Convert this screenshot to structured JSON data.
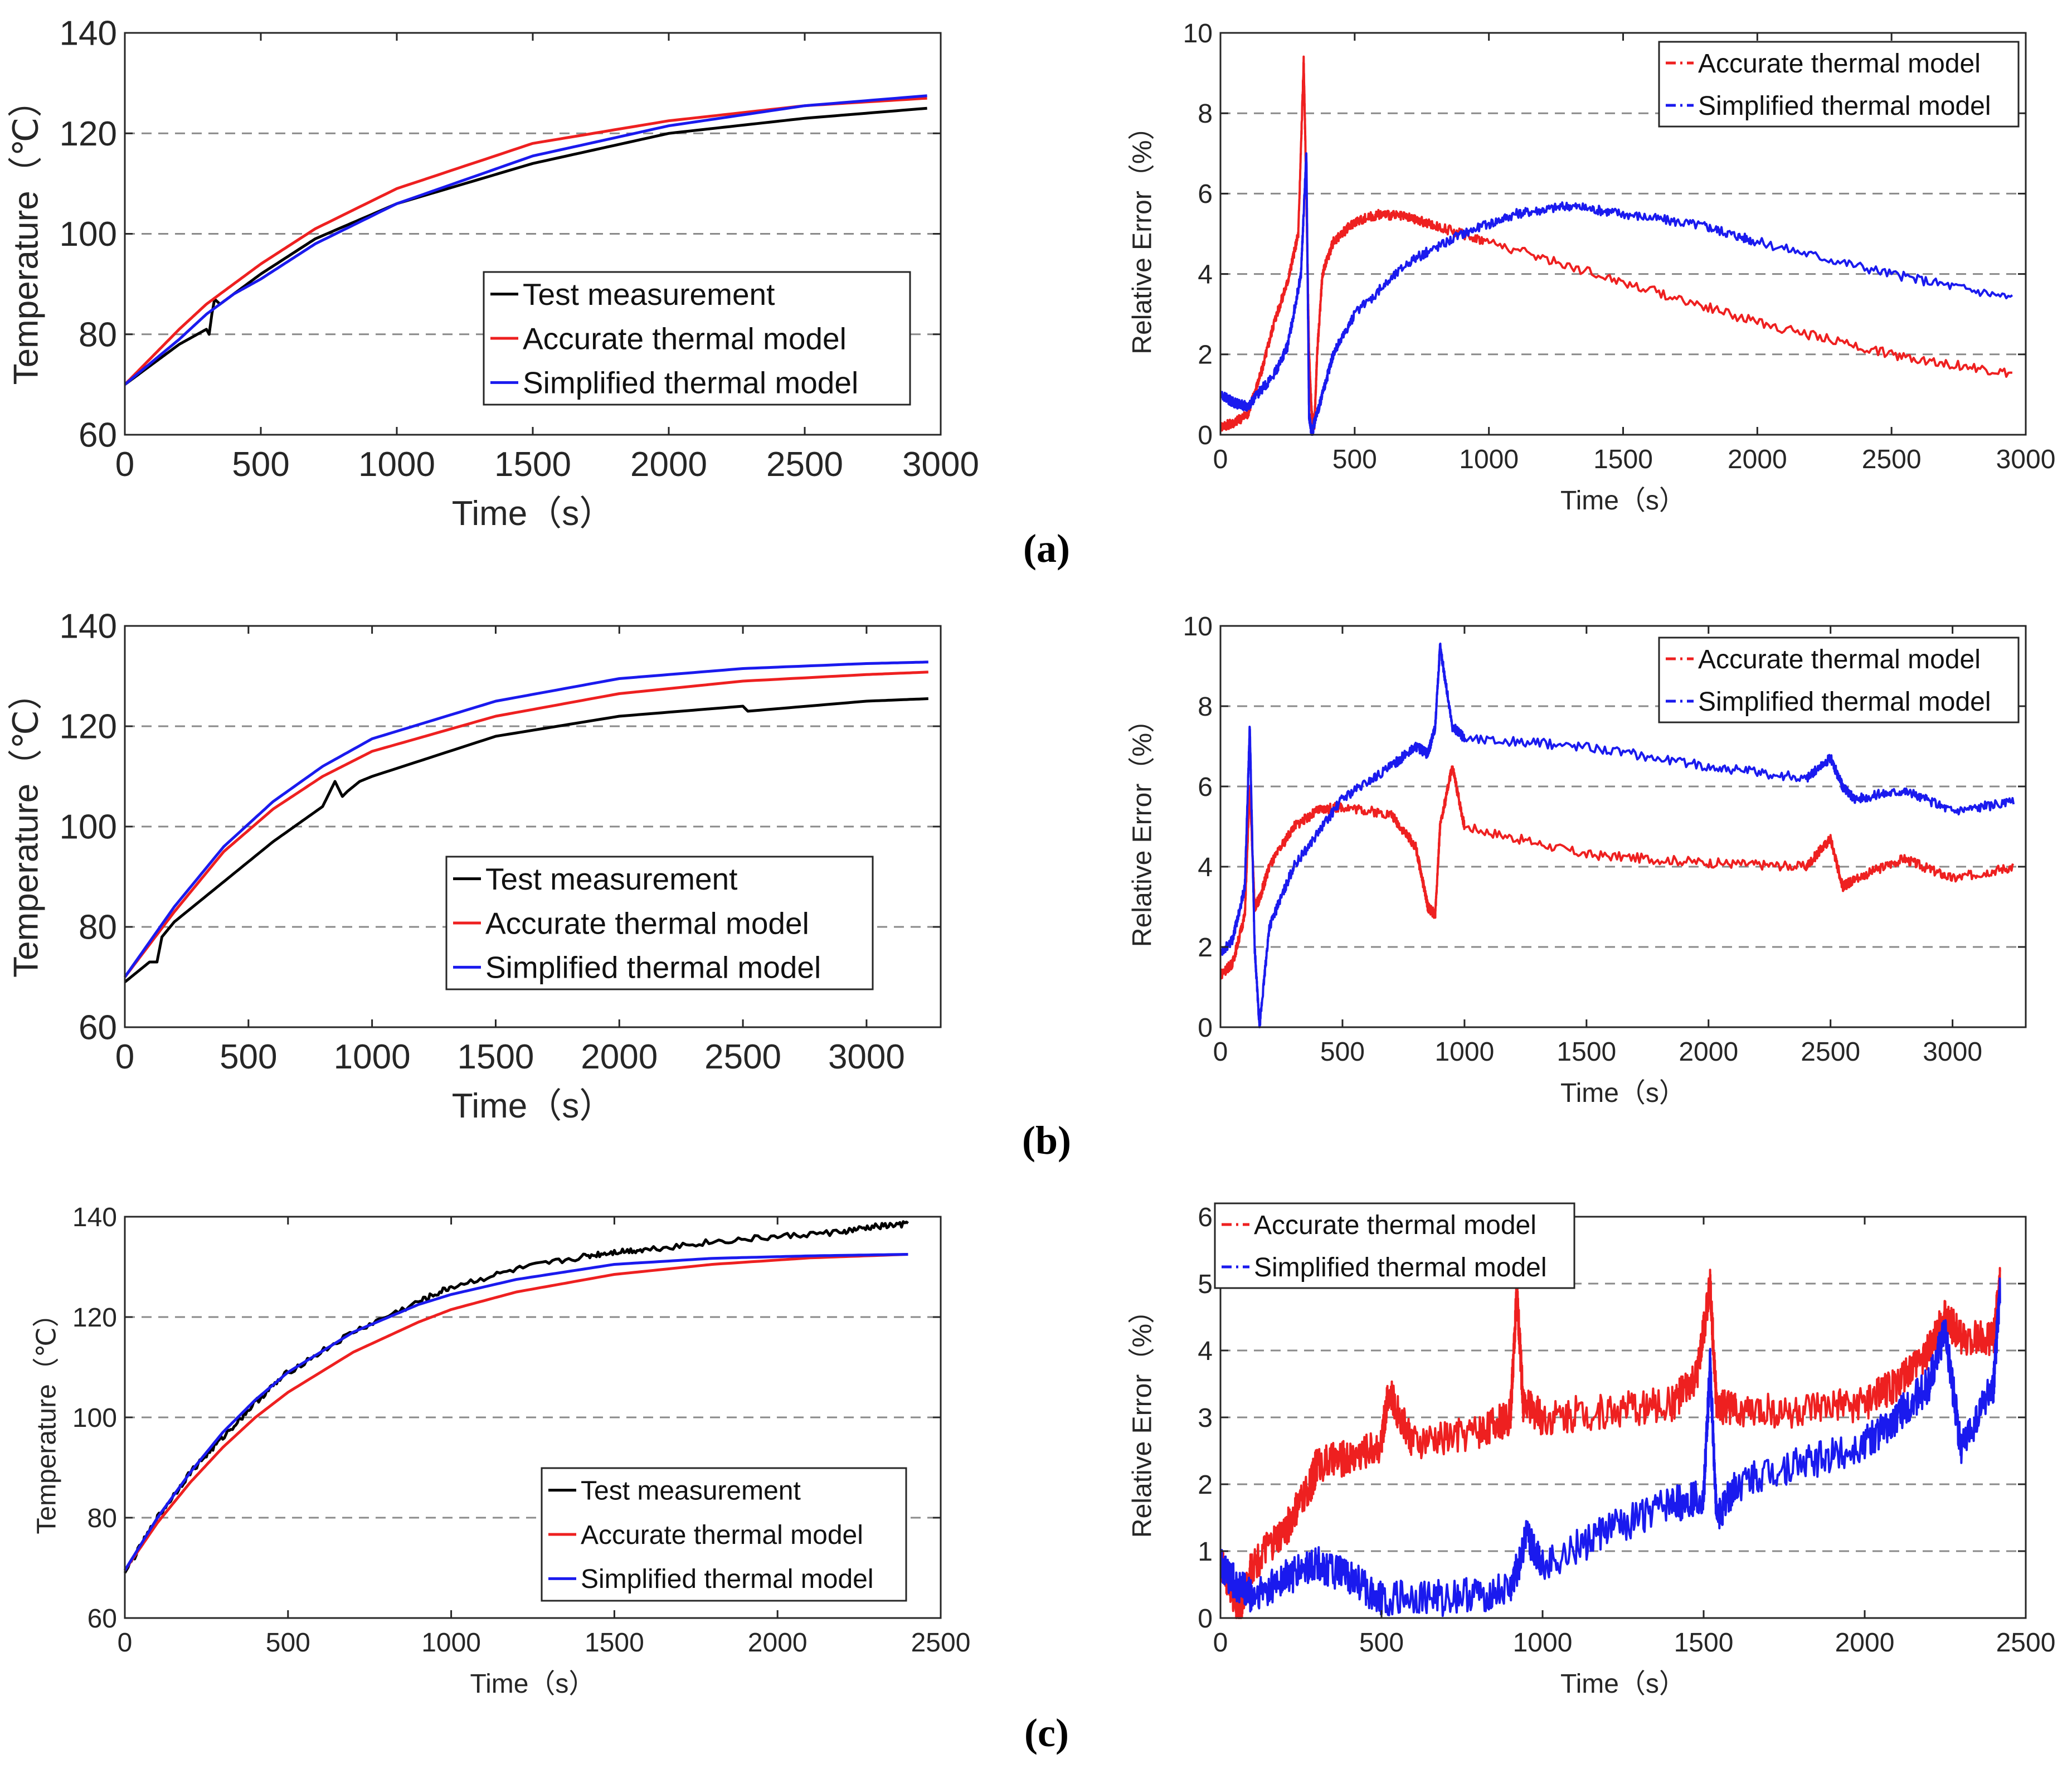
{
  "figure": {
    "captions": [
      "(a)",
      "(b)",
      "(c)"
    ]
  },
  "chart_data": [
    {
      "id": "a-left",
      "type": "line",
      "panel": "a",
      "title": "",
      "xlabel": "Time（s）",
      "ylabel": "Temperature（℃）",
      "xlim": [
        0,
        3000
      ],
      "ylim": [
        60,
        140
      ],
      "xticks": [
        "0",
        "500",
        "1000",
        "1500",
        "2000",
        "2500",
        "3000"
      ],
      "yticks": [
        "60",
        "80",
        "100",
        "120",
        "140"
      ],
      "grid": "y-dashed",
      "legend_position": "lower-right",
      "series": [
        {
          "name": "Test measurement",
          "color": "#000000",
          "x": [
            0,
            100,
            200,
            300,
            310,
            320,
            330,
            350,
            400,
            500,
            700,
            1000,
            1500,
            2000,
            2500,
            2950
          ],
          "y": [
            70,
            74,
            78,
            81,
            80,
            84,
            87,
            86,
            88,
            92,
            99,
            106,
            114,
            120,
            123,
            125
          ]
        },
        {
          "name": "Accurate thermal model",
          "color": "#ee2020",
          "x": [
            0,
            100,
            200,
            300,
            400,
            500,
            700,
            1000,
            1500,
            2000,
            2500,
            2950
          ],
          "y": [
            70,
            75.5,
            81,
            86,
            90,
            94,
            101,
            109,
            118,
            122.5,
            125.5,
            127
          ]
        },
        {
          "name": "Simplified thermal model",
          "color": "#1a1aee",
          "x": [
            0,
            100,
            200,
            300,
            400,
            500,
            700,
            1000,
            1500,
            2000,
            2500,
            2950
          ],
          "y": [
            70,
            74.5,
            79,
            84,
            88,
            91,
            98,
            106,
            115.5,
            121.5,
            125.5,
            127.5
          ]
        }
      ]
    },
    {
      "id": "a-right",
      "type": "line",
      "panel": "a",
      "title": "",
      "xlabel": "Time（s）",
      "ylabel": "Relative Error（%）",
      "xlim": [
        0,
        3000
      ],
      "ylim": [
        0,
        10
      ],
      "xticks": [
        "0",
        "500",
        "1000",
        "1500",
        "2000",
        "2500",
        "3000"
      ],
      "yticks": [
        "0",
        "2",
        "4",
        "6",
        "8",
        "10"
      ],
      "grid": "y-dashed",
      "legend_position": "top-right",
      "series": [
        {
          "name": "Accurate thermal model",
          "color": "#ee2020",
          "x": [
            0,
            50,
            100,
            150,
            200,
            250,
            290,
            310,
            320,
            330,
            340,
            350,
            360,
            380,
            420,
            500,
            600,
            700,
            800,
            1000,
            1500,
            2000,
            2500,
            2950
          ],
          "y": [
            0.2,
            0.3,
            0.5,
            1.5,
            2.8,
            3.8,
            5,
            9.3,
            6,
            2,
            0.5,
            0.2,
            2,
            4,
            4.8,
            5.3,
            5.5,
            5.4,
            5.2,
            4.8,
            3.8,
            2.8,
            2,
            1.5
          ]
        },
        {
          "name": "Simplified thermal model",
          "color": "#1a1aee",
          "x": [
            0,
            50,
            100,
            200,
            250,
            300,
            320,
            330,
            340,
            350,
            380,
            420,
            500,
            700,
            900,
            1100,
            1300,
            1500,
            1800,
            2000,
            2500,
            2950
          ],
          "y": [
            1,
            0.8,
            0.7,
            1.5,
            2.2,
            4,
            7,
            0.5,
            0,
            0.3,
            1,
            2,
            3,
            4.3,
            5,
            5.5,
            5.7,
            5.5,
            5.2,
            4.8,
            4,
            3.4
          ]
        }
      ]
    },
    {
      "id": "b-left",
      "type": "line",
      "panel": "b",
      "title": "",
      "xlabel": "Time（s）",
      "ylabel": "Temperature（℃）",
      "xlim": [
        0,
        3300
      ],
      "ylim": [
        60,
        140
      ],
      "xticks": [
        "0",
        "500",
        "1000",
        "1500",
        "2000",
        "2500",
        "3000"
      ],
      "yticks": [
        "60",
        "80",
        "100",
        "120",
        "140"
      ],
      "grid": "y-dashed",
      "legend_position": "lower-right",
      "series": [
        {
          "name": "Test measurement",
          "color": "#000000",
          "x": [
            0,
            100,
            130,
            150,
            200,
            400,
            600,
            800,
            850,
            880,
            900,
            950,
            1000,
            1500,
            2000,
            2500,
            2520,
            3000,
            3250
          ],
          "y": [
            69,
            73,
            73,
            78,
            81,
            89,
            97,
            104,
            109,
            106,
            107,
            109,
            110,
            118,
            122,
            124,
            123,
            125,
            125.5
          ]
        },
        {
          "name": "Accurate thermal model",
          "color": "#ee2020",
          "x": [
            0,
            200,
            400,
            600,
            800,
            1000,
            1500,
            2000,
            2500,
            3000,
            3250
          ],
          "y": [
            70,
            83,
            95,
            103.5,
            110,
            115,
            122,
            126.5,
            129,
            130.3,
            130.8
          ]
        },
        {
          "name": "Simplified thermal model",
          "color": "#1a1aee",
          "x": [
            0,
            200,
            400,
            600,
            800,
            1000,
            1500,
            2000,
            2500,
            3000,
            3250
          ],
          "y": [
            70,
            84,
            96,
            105,
            112,
            117.5,
            125,
            129.5,
            131.5,
            132.5,
            132.8
          ]
        }
      ]
    },
    {
      "id": "b-right",
      "type": "line",
      "panel": "b",
      "title": "",
      "xlabel": "Time（s）",
      "ylabel": "Relative Error（%）",
      "xlim": [
        0,
        3300
      ],
      "ylim": [
        0,
        10
      ],
      "xticks": [
        "0",
        "500",
        "1000",
        "1500",
        "2000",
        "2500",
        "3000"
      ],
      "yticks": [
        "0",
        "2",
        "4",
        "6",
        "8",
        "10"
      ],
      "grid": "y-dashed",
      "legend_position": "top-right",
      "series": [
        {
          "name": "Accurate thermal model",
          "color": "#ee2020",
          "x": [
            0,
            50,
            100,
            120,
            140,
            160,
            200,
            300,
            400,
            500,
            700,
            800,
            850,
            880,
            900,
            950,
            1000,
            1500,
            2000,
            2400,
            2500,
            2550,
            2600,
            2800,
            3000,
            3250
          ],
          "y": [
            1.3,
            1.6,
            2.8,
            6,
            3,
            3.2,
            4,
            5,
            5.4,
            5.5,
            5.3,
            4.5,
            3,
            2.8,
            5,
            6.5,
            5,
            4.3,
            4.1,
            4,
            4.7,
            3.5,
            3.7,
            4.2,
            3.7,
            4
          ]
        },
        {
          "name": "Simplified thermal model",
          "color": "#1a1aee",
          "x": [
            0,
            50,
            100,
            120,
            140,
            160,
            200,
            300,
            500,
            700,
            800,
            850,
            880,
            900,
            950,
            1000,
            1500,
            2000,
            2400,
            2500,
            2550,
            2600,
            2800,
            3000,
            3250
          ],
          "y": [
            1.8,
            2.2,
            3.5,
            7.5,
            2,
            0,
            2.5,
            4,
            5.7,
            6.5,
            7,
            6.8,
            7.5,
            9.5,
            7.5,
            7.2,
            7,
            6.5,
            6.2,
            6.7,
            6,
            5.7,
            5.9,
            5.4,
            5.6
          ]
        }
      ]
    },
    {
      "id": "c-left",
      "type": "line",
      "panel": "c",
      "title": "",
      "xlabel": "Time（s）",
      "ylabel": "Temperature（℃）",
      "xlim": [
        0,
        2500
      ],
      "ylim": [
        60,
        140
      ],
      "xticks": [
        "0",
        "500",
        "1000",
        "1500",
        "2000",
        "2500"
      ],
      "yticks": [
        "60",
        "80",
        "100",
        "120",
        "140"
      ],
      "grid": "y-dashed",
      "legend_position": "lower-right",
      "series": [
        {
          "name": "Test measurement",
          "color": "#000000",
          "x": [
            0,
            100,
            200,
            300,
            400,
            500,
            700,
            900,
            1000,
            1200,
            1400,
            1500,
            1600,
            1800,
            2000,
            2200,
            2300,
            2400
          ],
          "y": [
            69,
            80,
            89,
            96,
            103,
            109,
            117,
            123,
            126,
            129.5,
            132,
            133,
            133.5,
            135,
            136,
            137,
            138,
            138.5
          ]
        },
        {
          "name": "Accurate thermal model",
          "color": "#ee2020",
          "x": [
            0,
            100,
            200,
            300,
            400,
            500,
            700,
            900,
            1000,
            1200,
            1500,
            1800,
            2100,
            2400
          ],
          "y": [
            69.5,
            79,
            87,
            94,
            100,
            105,
            113,
            119,
            121.5,
            125,
            128.5,
            130.5,
            131.8,
            132.5
          ]
        },
        {
          "name": "Simplified thermal model",
          "color": "#1a1aee",
          "x": [
            0,
            100,
            200,
            300,
            400,
            500,
            700,
            900,
            1000,
            1200,
            1500,
            1800,
            2100,
            2400
          ],
          "y": [
            69.5,
            80,
            89,
            97,
            103.5,
            109,
            117,
            122.5,
            124.5,
            127.5,
            130.5,
            131.7,
            132.2,
            132.5
          ]
        }
      ]
    },
    {
      "id": "c-right",
      "type": "line",
      "panel": "c",
      "title": "",
      "xlabel": "Time（s）",
      "ylabel": "Relative Error（%）",
      "xlim": [
        0,
        2500
      ],
      "ylim": [
        0,
        6
      ],
      "xticks": [
        "0",
        "500",
        "1000",
        "1500",
        "2000",
        "2500"
      ],
      "yticks": [
        "0",
        "1",
        "2",
        "3",
        "4",
        "5",
        "6"
      ],
      "grid": "y-dashed",
      "legend_position": "top-left",
      "series": [
        {
          "name": "Accurate thermal model",
          "color": "#ee2020",
          "x": [
            0,
            30,
            60,
            100,
            200,
            280,
            300,
            400,
            500,
            520,
            600,
            800,
            900,
            920,
            940,
            1000,
            1200,
            1400,
            1480,
            1520,
            1540,
            1600,
            1800,
            2000,
            2100,
            2200,
            2250,
            2300,
            2400,
            2420
          ],
          "y": [
            0.8,
            0.5,
            0.1,
            0.8,
            1.3,
            2,
            2.3,
            2.4,
            2.6,
            3.4,
            2.6,
            2.8,
            3,
            4.9,
            3.2,
            3,
            3.1,
            3.2,
            3.6,
            5,
            3.2,
            3.1,
            3.1,
            3.2,
            3.5,
            4,
            4.5,
            4.2,
            4.2,
            5
          ]
        },
        {
          "name": "Simplified thermal model",
          "color": "#1a1aee",
          "x": [
            0,
            50,
            100,
            200,
            300,
            400,
            500,
            700,
            900,
            950,
            1000,
            1200,
            1400,
            1500,
            1520,
            1540,
            1600,
            1800,
            2000,
            2100,
            2200,
            2250,
            2300,
            2400,
            2420
          ],
          "y": [
            0.8,
            0.5,
            0.3,
            0.6,
            0.8,
            0.6,
            0.3,
            0.3,
            0.4,
            1.2,
            0.8,
            1.3,
            1.7,
            1.8,
            3.8,
            1.5,
            2,
            2.3,
            2.6,
            3,
            3.5,
            4.3,
            2.5,
            3.5,
            4.9
          ]
        }
      ]
    }
  ]
}
